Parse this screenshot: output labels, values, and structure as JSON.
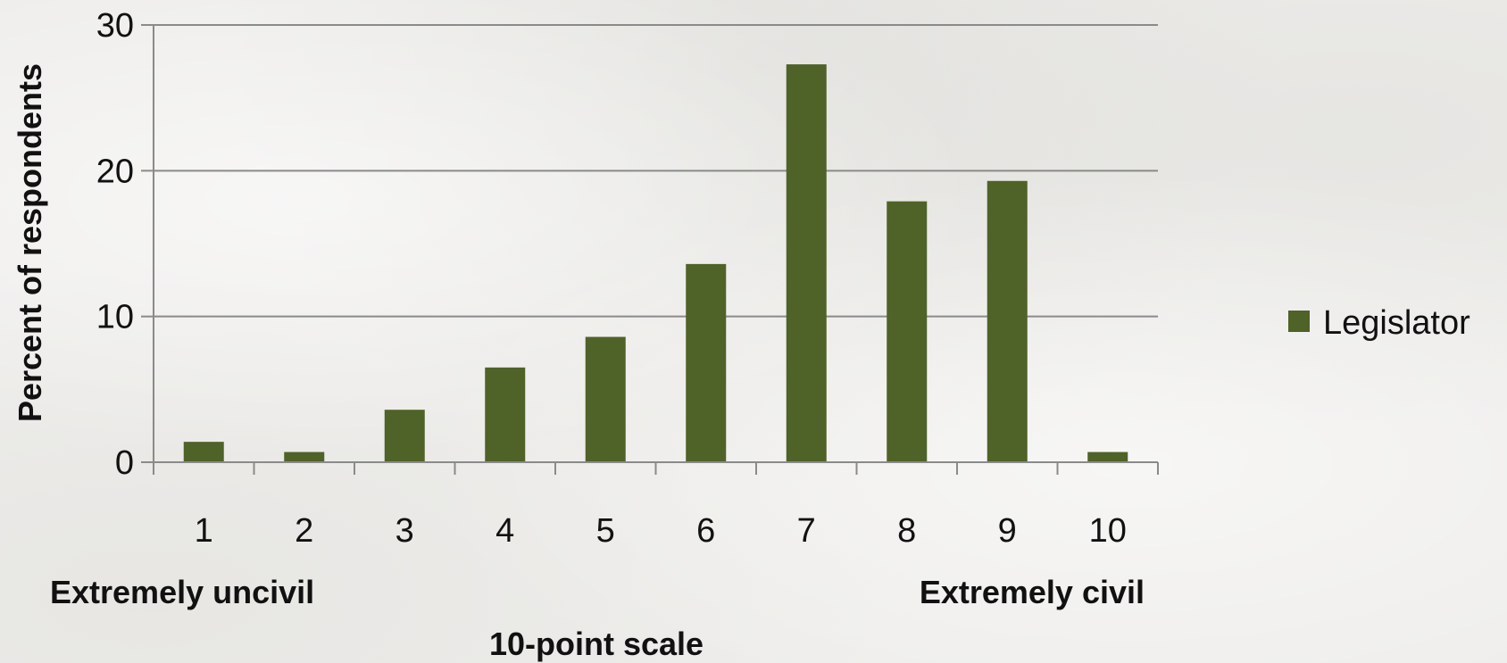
{
  "chart_data": {
    "type": "bar",
    "categories": [
      "1",
      "2",
      "3",
      "4",
      "5",
      "6",
      "7",
      "8",
      "9",
      "10"
    ],
    "series": [
      {
        "name": "Legislator",
        "color": "#4f6228",
        "values": [
          1.4,
          0.7,
          3.6,
          6.5,
          8.6,
          13.6,
          27.3,
          17.9,
          19.3,
          0.7
        ]
      }
    ],
    "ylabel": "Percent of respondents",
    "xlabel": "10-point scale",
    "x_end_labels": {
      "left": "Extremely uncivil",
      "right": "Extremely civil"
    },
    "yticks": [
      "0",
      "10",
      "20",
      "30"
    ],
    "ylim": [
      0,
      30
    ],
    "grid": true,
    "legend_position": "right"
  }
}
